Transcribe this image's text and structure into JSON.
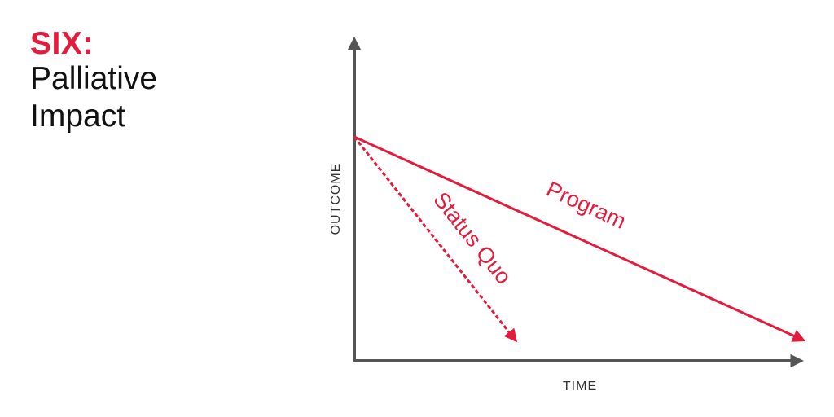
{
  "heading": {
    "number": "SIX:",
    "line1": "Palliative",
    "line2": "Impact"
  },
  "diagram": {
    "y_axis_label": "OUTCOME",
    "x_axis_label": "TIME",
    "program_label": "Program",
    "status_quo_label": "Status Quo"
  },
  "colors": {
    "accent": "#e31b3c",
    "axis": "#555555",
    "text": "#111111"
  }
}
